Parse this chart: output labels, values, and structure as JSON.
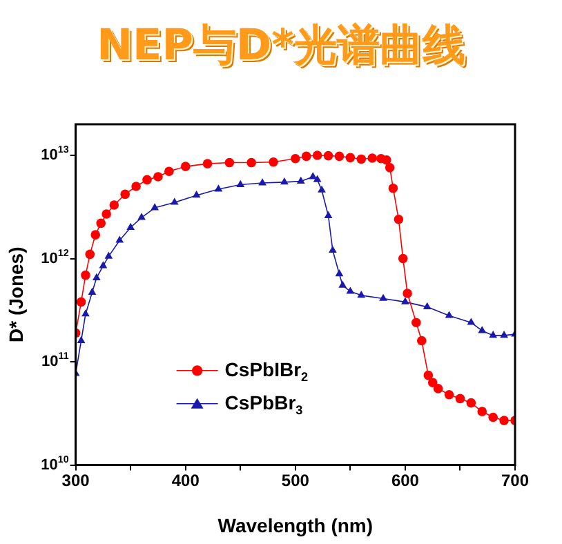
{
  "chart_data": {
    "type": "line",
    "title": "NEP与D*光谱曲线",
    "xlabel": "Wavelength (nm)",
    "ylabel": "D* (Jones)",
    "log": "y",
    "grid": false,
    "legend": "left",
    "line_style": "solid",
    "xlim": [
      300,
      700
    ],
    "xticks": [
      300,
      {
        "value": 350,
        "label": null
      },
      400,
      {
        "value": 450,
        "label": null
      },
      500,
      {
        "value": 550,
        "label": null
      },
      600,
      {
        "value": 650,
        "label": null
      },
      700
    ],
    "ylim": [
      10000000000.0,
      20000000000000.0
    ],
    "yticks": [
      {
        "value": 10000000000.0,
        "label": "10$^{10}$"
      },
      {
        "value": 100000000000.0,
        "label": "10$^{11}$"
      },
      {
        "value": 1000000000000.0,
        "label": "10$^{12}$"
      },
      {
        "value": 10000000000000.0,
        "label": "10$^{13}$"
      }
    ],
    "series": [
      {
        "name": "CsPbIBr$_{2}$",
        "color": "#ff0000",
        "marker": "circle",
        "x": [
          300,
          305,
          309,
          313,
          318,
          323,
          328,
          335,
          345,
          355,
          365,
          375,
          385,
          400,
          420,
          440,
          460,
          480,
          500,
          510,
          520,
          530,
          540,
          550,
          560,
          570,
          578,
          583,
          586,
          589,
          594,
          598,
          602,
          610,
          615,
          621,
          625,
          630,
          640,
          650,
          660,
          670,
          680,
          690,
          700
        ],
        "values": [
          190000000000.0,
          380000000000.0,
          690000000000.0,
          1100000000000.0,
          1700000000000.0,
          2200000000000.0,
          2700000000000.0,
          3300000000000.0,
          4200000000000.0,
          5000000000000.0,
          5800000000000.0,
          6200000000000.0,
          7000000000000.0,
          7800000000000.0,
          8300000000000.0,
          8500000000000.0,
          8500000000000.0,
          8600000000000.0,
          9300000000000.0,
          9800000000000.0,
          10000000000000.0,
          9900000000000.0,
          9800000000000.0,
          9500000000000.0,
          9200000000000.0,
          9400000000000.0,
          9300000000000.0,
          9000000000000.0,
          7600000000000.0,
          4800000000000.0,
          2400000000000.0,
          1000000000000.0,
          460000000000.0,
          240000000000.0,
          160000000000.0,
          74000000000.0,
          63000000000.0,
          55000000000.0,
          48000000000.0,
          44000000000.0,
          40000000000.0,
          33000000000.0,
          29000000000.0,
          27000000000.0,
          27000000000.0
        ]
      },
      {
        "name": "CsPbBr$_{3}$",
        "color": "#1a1aaa",
        "marker": "triangle",
        "x": [
          300,
          305,
          309,
          315,
          319,
          325,
          330,
          340,
          350,
          360,
          372,
          390,
          410,
          430,
          450,
          470,
          490,
          505,
          516,
          520,
          524,
          530,
          534,
          540,
          543,
          550,
          560,
          580,
          600,
          620,
          640,
          660,
          670,
          680,
          690,
          700
        ],
        "values": [
          77000000000.0,
          160000000000.0,
          290000000000.0,
          470000000000.0,
          650000000000.0,
          850000000000.0,
          1050000000000.0,
          1500000000000.0,
          2000000000000.0,
          2500000000000.0,
          3100000000000.0,
          3500000000000.0,
          4100000000000.0,
          4700000000000.0,
          5200000000000.0,
          5400000000000.0,
          5500000000000.0,
          5600000000000.0,
          6200000000000.0,
          5800000000000.0,
          4600000000000.0,
          2600000000000.0,
          1200000000000.0,
          710000000000.0,
          550000000000.0,
          480000000000.0,
          440000000000.0,
          410000000000.0,
          380000000000.0,
          340000000000.0,
          280000000000.0,
          240000000000.0,
          200000000000.0,
          180000000000.0,
          180000000000.0,
          185000000000.0
        ]
      }
    ]
  }
}
